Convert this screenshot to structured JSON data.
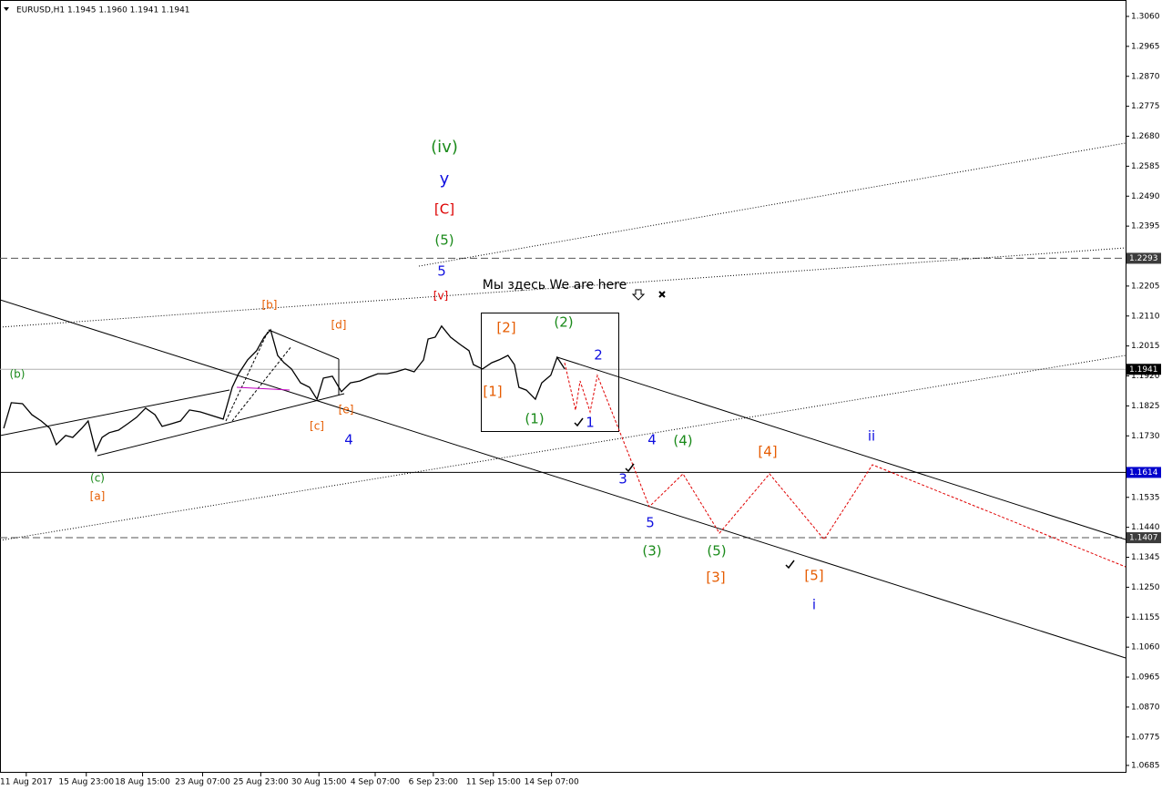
{
  "chart_data": {
    "type": "line",
    "title": "EURUSD,H1  1.1945 1.1960 1.1941 1.1941",
    "color": "#000000",
    "xlim": [
      0,
      300
    ],
    "ylim": [
      1.0627,
      1.3112
    ],
    "x": [
      1,
      3,
      6,
      8.5,
      11,
      13.3,
      15,
      17.5,
      19.4,
      21.8,
      23.5,
      25.5,
      27.2,
      29.1,
      31.6,
      34,
      36.4,
      38.8,
      41.3,
      43.2,
      45.6,
      48.1,
      50.5,
      53.4,
      55.8,
      59.5,
      61.9,
      63.6,
      66,
      68.4,
      70.4,
      72.1,
      74,
      75.7,
      77.7,
      80.1,
      82.5,
      84.5,
      86.2,
      88.6,
      91,
      93.4,
      95.9,
      98.3,
      100.7,
      103.2,
      105.6,
      108,
      110.4,
      112.9,
      114.1,
      116,
      117.7,
      120.1,
      122.6,
      125,
      126.2,
      128.6,
      131.1,
      133,
      135.4,
      137.1,
      138.3,
      140.3,
      142.7,
      144.4,
      146.8,
      148.5,
      150.5
    ],
    "values": [
      1.1754,
      1.1835,
      1.1832,
      1.1797,
      1.1777,
      1.1754,
      1.1702,
      1.1731,
      1.1725,
      1.1754,
      1.1777,
      1.1682,
      1.1725,
      1.174,
      1.1748,
      1.1768,
      1.1789,
      1.1818,
      1.1797,
      1.176,
      1.1768,
      1.1777,
      1.1812,
      1.1806,
      1.1797,
      1.1783,
      1.1884,
      1.1927,
      1.1971,
      1.2,
      1.2043,
      1.2066,
      1.1985,
      1.1962,
      1.1942,
      1.1898,
      1.1884,
      1.1846,
      1.1913,
      1.1919,
      1.187,
      1.1898,
      1.1904,
      1.1916,
      1.1927,
      1.1927,
      1.1933,
      1.1942,
      1.1933,
      1.1971,
      1.2037,
      1.2043,
      1.2078,
      1.2043,
      1.202,
      1.2,
      1.1956,
      1.1942,
      1.1962,
      1.1971,
      1.1985,
      1.1956,
      1.1884,
      1.1875,
      1.1846,
      1.1898,
      1.1922,
      1.1979,
      1.1942
    ],
    "xticks": [
      {
        "value": 7,
        "label": "11 Aug 2017"
      },
      {
        "value": 23,
        "label": "15 Aug 23:00"
      },
      {
        "value": 38,
        "label": "18 Aug 15:00"
      },
      {
        "value": 54,
        "label": "23 Aug 07:00"
      },
      {
        "value": 69.5,
        "label": "25 Aug 23:00"
      },
      {
        "value": 85,
        "label": "30 Aug 15:00"
      },
      {
        "value": 100,
        "label": "4 Sep 07:00"
      },
      {
        "value": 115.5,
        "label": "6 Sep 23:00"
      },
      {
        "value": 131.5,
        "label": "11 Sep 15:00"
      },
      {
        "value": 147,
        "label": "14 Sep 07:00"
      }
    ],
    "yticks": [
      {
        "value": 1.306,
        "label": "1.3060"
      },
      {
        "value": 1.2965,
        "label": "1.2965"
      },
      {
        "value": 1.287,
        "label": "1.2870"
      },
      {
        "value": 1.2775,
        "label": "1.2775"
      },
      {
        "value": 1.268,
        "label": "1.2680"
      },
      {
        "value": 1.2585,
        "label": "1.2585"
      },
      {
        "value": 1.249,
        "label": "1.2490"
      },
      {
        "value": 1.2395,
        "label": "1.2395"
      },
      {
        "value": 1.2205,
        "label": "1.2205"
      },
      {
        "value": 1.211,
        "label": "1.2110"
      },
      {
        "value": 1.2015,
        "label": "1.2015"
      },
      {
        "value": 1.192,
        "label": "1.1920"
      },
      {
        "value": 1.1825,
        "label": "1.1825"
      },
      {
        "value": 1.173,
        "label": "1.1730"
      },
      {
        "value": 1.1535,
        "label": "1.1535"
      },
      {
        "value": 1.144,
        "label": "1.1440"
      },
      {
        "value": 1.1345,
        "label": "1.1345"
      },
      {
        "value": 1.125,
        "label": "1.1250"
      },
      {
        "value": 1.1155,
        "label": "1.1155"
      },
      {
        "value": 1.106,
        "label": "1.1060"
      },
      {
        "value": 1.0965,
        "label": "1.0965"
      },
      {
        "value": 1.087,
        "label": "1.0870"
      },
      {
        "value": 1.0775,
        "label": "1.0775"
      },
      {
        "value": 1.0685,
        "label": "1.0685"
      }
    ],
    "levels": [
      {
        "value": 1.2293,
        "style": "dashed",
        "color": "#555555",
        "label_bg": "#3c3c3c"
      },
      {
        "value": 1.1941,
        "style": "solid",
        "color": "#b0b0b0",
        "label_bg": "#000000"
      },
      {
        "value": 1.1614,
        "style": "solid",
        "color": "#000000",
        "label_bg": "#0000cc"
      },
      {
        "value": 1.1407,
        "style": "dashed",
        "color": "#555555",
        "label_bg": "#3c3c3c"
      }
    ]
  },
  "annotations": [
    "(iv)",
    "y",
    "[C]",
    "(5)",
    "5",
    "[v]",
    "[b]",
    "[d]",
    "(b)",
    "(c)",
    "[a]",
    "[c]",
    "[e]",
    "4",
    "[2]",
    "(2)",
    "[1]",
    "(1)",
    "2",
    "1",
    "4",
    "(4)",
    "3",
    "5",
    "(3)",
    "(5)",
    "[3]",
    "[4]",
    "[5]",
    "ii",
    "i",
    "Мы здесь We are here"
  ]
}
